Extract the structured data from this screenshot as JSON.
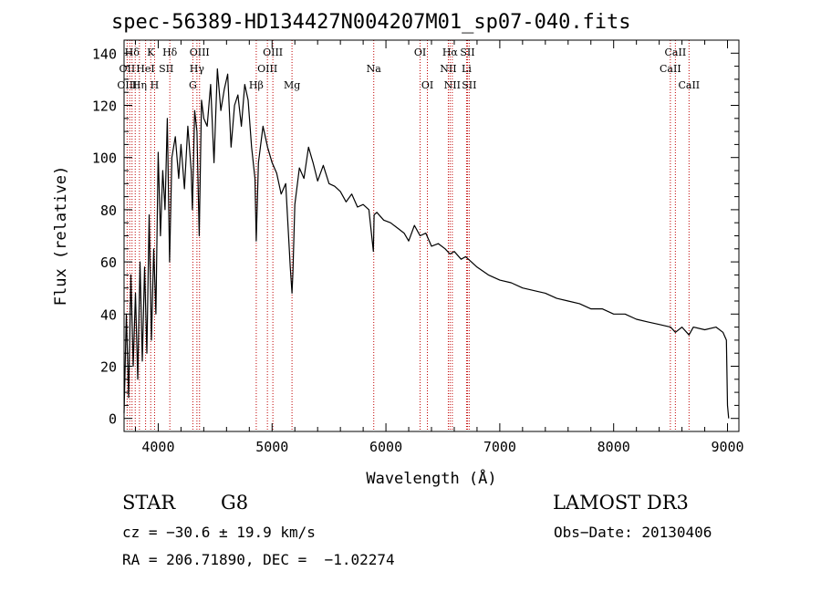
{
  "chart_data": {
    "type": "line",
    "title": "spec-56389-HD134427N004207M01_sp07-040.fits",
    "xlabel": "Wavelength (Å)",
    "ylabel": "Flux (relative)",
    "xlim": [
      3700,
      9100
    ],
    "ylim": [
      -5,
      145
    ],
    "xticks": [
      4000,
      5000,
      6000,
      7000,
      8000,
      9000
    ],
    "yticks": [
      0,
      20,
      40,
      60,
      80,
      100,
      120,
      140
    ],
    "grid": false,
    "series": [
      {
        "name": "spectrum",
        "x": [
          3700,
          3720,
          3740,
          3760,
          3780,
          3800,
          3820,
          3840,
          3860,
          3880,
          3900,
          3920,
          3940,
          3960,
          3980,
          4000,
          4020,
          4040,
          4060,
          4080,
          4100,
          4120,
          4150,
          4180,
          4200,
          4230,
          4260,
          4290,
          4300,
          4320,
          4340,
          4360,
          4380,
          4400,
          4430,
          4460,
          4490,
          4520,
          4550,
          4580,
          4610,
          4640,
          4670,
          4700,
          4730,
          4760,
          4790,
          4820,
          4850,
          4861,
          4880,
          4920,
          4960,
          5000,
          5040,
          5080,
          5120,
          5160,
          5175,
          5183,
          5200,
          5240,
          5280,
          5320,
          5360,
          5400,
          5450,
          5500,
          5550,
          5600,
          5650,
          5700,
          5750,
          5800,
          5850,
          5890,
          5896,
          5920,
          5980,
          6040,
          6100,
          6160,
          6200,
          6250,
          6300,
          6350,
          6400,
          6460,
          6520,
          6563,
          6600,
          6660,
          6700,
          6750,
          6800,
          6900,
          7000,
          7100,
          7200,
          7300,
          7400,
          7500,
          7600,
          7700,
          7800,
          7900,
          8000,
          8100,
          8200,
          8300,
          8400,
          8500,
          8542,
          8600,
          8662,
          8700,
          8800,
          8900,
          8960,
          8990,
          9000,
          9010
        ],
        "values": [
          2,
          40,
          8,
          55,
          20,
          48,
          15,
          60,
          22,
          58,
          25,
          78,
          30,
          65,
          40,
          102,
          70,
          95,
          80,
          115,
          60,
          100,
          108,
          92,
          105,
          88,
          112,
          95,
          80,
          118,
          110,
          70,
          122,
          115,
          112,
          128,
          98,
          134,
          118,
          126,
          132,
          104,
          120,
          124,
          112,
          128,
          122,
          104,
          92,
          68,
          98,
          112,
          104,
          98,
          94,
          86,
          90,
          58,
          48,
          56,
          82,
          96,
          92,
          104,
          98,
          91,
          97,
          90,
          89,
          87,
          83,
          86,
          81,
          82,
          80,
          64,
          78,
          79,
          76,
          75,
          73,
          71,
          68,
          74,
          70,
          71,
          66,
          67,
          65,
          63,
          64,
          61,
          62,
          60,
          58,
          55,
          53,
          52,
          50,
          49,
          48,
          46,
          45,
          44,
          42,
          42,
          40,
          40,
          38,
          37,
          36,
          35,
          33,
          35,
          32,
          35,
          34,
          35,
          33,
          30,
          5,
          0
        ]
      }
    ],
    "line_labels": [
      {
        "name": "Hδ",
        "x": 3770,
        "row": 0
      },
      {
        "name": "OII",
        "x": 3727,
        "row": 1
      },
      {
        "name": "OIII",
        "x": 3727,
        "row": 2
      },
      {
        "name": "K",
        "x": 3934,
        "row": 0
      },
      {
        "name": "HeI",
        "x": 3888,
        "row": 1
      },
      {
        "name": "Hη",
        "x": 3835,
        "row": 2
      },
      {
        "name": "SII",
        "x": 4070,
        "row": 1
      },
      {
        "name": "H",
        "x": 3968,
        "row": 2
      },
      {
        "name": "Hδ",
        "x": 4102,
        "row": 0
      },
      {
        "name": "OIII",
        "x": 4363,
        "row": 0
      },
      {
        "name": "Hγ",
        "x": 4340,
        "row": 1
      },
      {
        "name": "G",
        "x": 4304,
        "row": 2
      },
      {
        "name": "OIII",
        "x": 5007,
        "row": 0
      },
      {
        "name": "OIII",
        "x": 4959,
        "row": 1
      },
      {
        "name": "Hβ",
        "x": 4861,
        "row": 2
      },
      {
        "name": "Mg",
        "x": 5175,
        "row": 2
      },
      {
        "name": "Na",
        "x": 5893,
        "row": 1
      },
      {
        "name": "OI",
        "x": 6300,
        "row": 0
      },
      {
        "name": "OI",
        "x": 6364,
        "row": 2
      },
      {
        "name": "Hα",
        "x": 6563,
        "row": 0
      },
      {
        "name": "SII",
        "x": 6716,
        "row": 0
      },
      {
        "name": "NII",
        "x": 6548,
        "row": 1
      },
      {
        "name": "Li",
        "x": 6708,
        "row": 1
      },
      {
        "name": "NII",
        "x": 6583,
        "row": 2
      },
      {
        "name": "SII",
        "x": 6731,
        "row": 2
      },
      {
        "name": "CaII",
        "x": 8542,
        "row": 0
      },
      {
        "name": "CaII",
        "x": 8498,
        "row": 1
      },
      {
        "name": "CaII",
        "x": 8662,
        "row": 2
      }
    ],
    "line_markers_x": [
      3727,
      3750,
      3770,
      3798,
      3835,
      3889,
      3934,
      3968,
      4102,
      4304,
      4340,
      4363,
      4861,
      4959,
      5007,
      5175,
      5893,
      6300,
      6364,
      6548,
      6563,
      6583,
      6708,
      6716,
      6731,
      8498,
      8542,
      8662
    ]
  },
  "info": {
    "class": "STAR",
    "subclass": "G8",
    "survey": "LAMOST DR3",
    "cz": "cz = −30.6 ± 19.9 km/s",
    "obs_date": "Obs−Date: 20130406",
    "coords": "RA = 206.71890, DEC =  −1.02274"
  }
}
